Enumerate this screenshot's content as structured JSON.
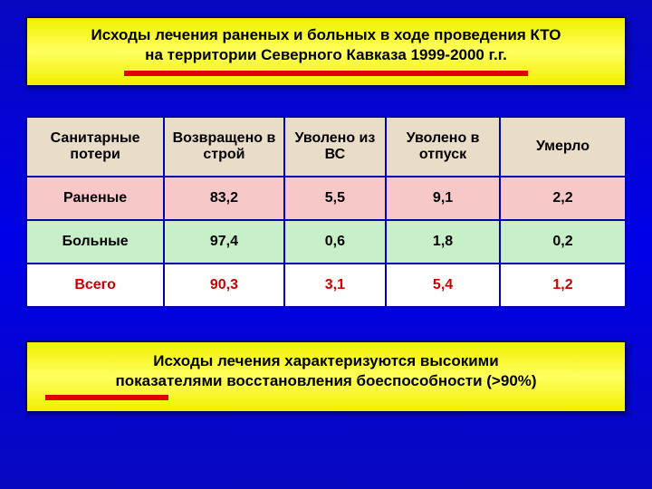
{
  "title": {
    "line1": "Исходы лечения раненых и больных в ходе проведения КТО",
    "line2": "на территории Северного Кавказа 1999-2000 г.г."
  },
  "table": {
    "columns": [
      "Санитарные потери",
      "Возвращено в строй",
      "Уволено из ВС",
      "Уволено в отпуск",
      "Умерло"
    ],
    "rows": [
      {
        "label": "Раненые",
        "values": [
          "83,2",
          "5,5",
          "9,1",
          "2,2"
        ],
        "css_class": "row-a"
      },
      {
        "label": "Больные",
        "values": [
          "97,4",
          "0,6",
          "1,8",
          "0,2"
        ],
        "css_class": "row-b"
      },
      {
        "label": "Всего",
        "values": [
          "90,3",
          "3,1",
          "5,4",
          "1,2"
        ],
        "css_class": "row-c"
      }
    ],
    "col_widths": [
      "23%",
      "20%",
      "17%",
      "19%",
      "21%"
    ]
  },
  "summary": {
    "line1": "Исходы лечения характеризуются высокими",
    "line2": "показателями восстановления боеспособности (>90%)"
  },
  "colors": {
    "background_gradient": [
      "#0808c0",
      "#0000e8"
    ],
    "title_bg": [
      "#f0f000",
      "#ffff60"
    ],
    "border": "#000080",
    "underline": "#e00000",
    "header_bg": "#eaddc8",
    "row_a_bg": "#f8c8c8",
    "row_b_bg": "#c8f0c8",
    "total_text": "#c80000",
    "cell_border": "#0000b0"
  }
}
